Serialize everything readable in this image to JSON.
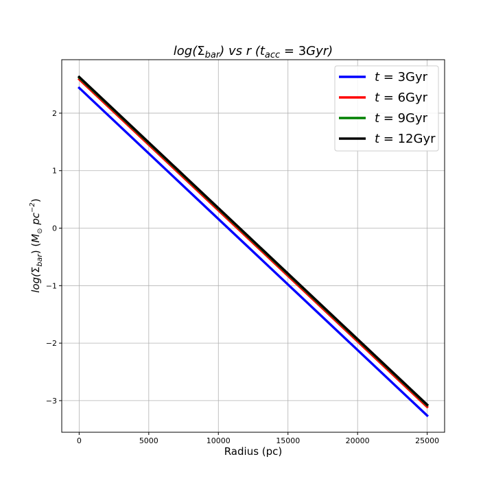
{
  "chart_data": {
    "type": "line",
    "title": {
      "pre": "log(",
      "sym": "Σ",
      "sub": "bar",
      "mid": ") vs r (",
      "t": "t",
      "tsub": "acc",
      "eq": " = 3",
      "unit": "Gyr",
      "post": ")"
    },
    "xlabel": "Radius (pc)",
    "ylabel": {
      "pre": "log(",
      "sym": "Σ",
      "sub": "bar",
      "mid": ") (",
      "m": "M",
      "msub": "⊙",
      "pc": " pc",
      "exp": "−2",
      "post": ")"
    },
    "xlim": [
      -1250,
      26250
    ],
    "ylim": [
      -3.55,
      2.93
    ],
    "xticks": [
      0,
      5000,
      10000,
      15000,
      20000,
      25000
    ],
    "xtick_labels": [
      "0",
      "5000",
      "10000",
      "15000",
      "20000",
      "25000"
    ],
    "yticks": [
      -3,
      -2,
      -1,
      0,
      1,
      2
    ],
    "ytick_labels": [
      "−3",
      "−2",
      "−1",
      "0",
      "1",
      "2"
    ],
    "grid": true,
    "legend_position": "top-right",
    "series": [
      {
        "name": {
          "t": "t",
          "eq": " = 3Gyr"
        },
        "color": "#0000ff",
        "x": [
          0,
          25000
        ],
        "y": [
          2.44,
          -3.26
        ]
      },
      {
        "name": {
          "t": "t",
          "eq": " = 6Gyr"
        },
        "color": "#ff0000",
        "x": [
          0,
          25000
        ],
        "y": [
          2.59,
          -3.11
        ]
      },
      {
        "name": {
          "t": "t",
          "eq": " = 9Gyr"
        },
        "color": "#008000",
        "x": [
          0,
          25000
        ],
        "y": [
          2.62,
          -3.08
        ]
      },
      {
        "name": {
          "t": "t",
          "eq": " = 12Gyr"
        },
        "color": "#000000",
        "x": [
          0,
          25000
        ],
        "y": [
          2.63,
          -3.07
        ]
      }
    ]
  }
}
